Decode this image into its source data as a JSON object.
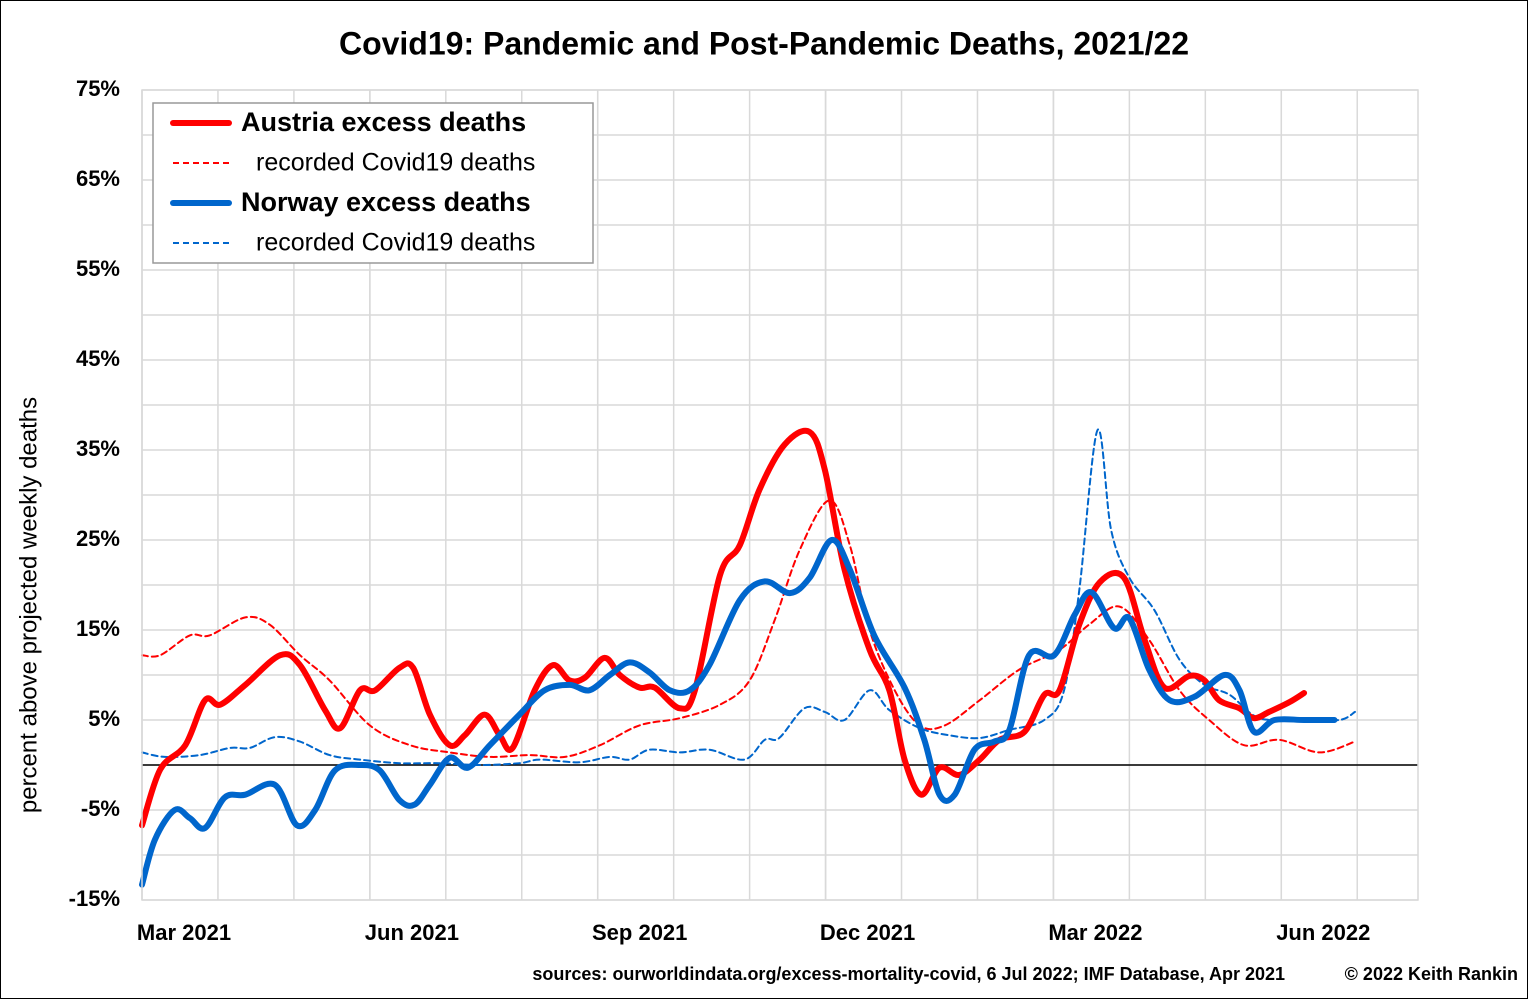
{
  "chart_data": {
    "type": "line",
    "title": "Covid19: Pandemic and Post-Pandemic Deaths, 2021/22",
    "ylabel": "percent above projected weekly deaths",
    "source": "sources: ourworldindata.org/excess-mortality-covid, 6 Jul 2022; IMF Database, Apr 2021",
    "credit": "© 2022 Keith Rankin",
    "xlim": [
      0,
      16.8
    ],
    "xticks": [
      {
        "value": 0,
        "label": "Mar 2021"
      },
      {
        "value": 3,
        "label": "Jun 2021"
      },
      {
        "value": 6,
        "label": "Sep 2021"
      },
      {
        "value": 9,
        "label": "Dec 2021"
      },
      {
        "value": 12,
        "label": "Mar 2022"
      },
      {
        "value": 15,
        "label": "Jun 2022"
      }
    ],
    "ylim": [
      -15,
      75
    ],
    "yticks": [
      {
        "value": 75,
        "label": "75%"
      },
      {
        "value": 65,
        "label": "65%"
      },
      {
        "value": 55,
        "label": "55%"
      },
      {
        "value": 45,
        "label": "45%"
      },
      {
        "value": 35,
        "label": "35%"
      },
      {
        "value": 25,
        "label": "25%"
      },
      {
        "value": 15,
        "label": "15%"
      },
      {
        "value": 5,
        "label": "5%"
      },
      {
        "value": -5,
        "label": "-5%"
      },
      {
        "value": -15,
        "label": "-15%"
      }
    ],
    "grid": true,
    "legend": "top-left",
    "series": [
      {
        "name": "Austria excess deaths",
        "color": "#ff0000",
        "line_style": "solid",
        "x": [
          0,
          0.24,
          0.57,
          0.83,
          1.03,
          1.36,
          1.82,
          2.08,
          2.41,
          2.61,
          2.87,
          3.07,
          3.39,
          3.57,
          3.79,
          4.05,
          4.25,
          4.51,
          4.71,
          4.88,
          5.17,
          5.41,
          5.63,
          5.83,
          6.09,
          6.29,
          6.55,
          6.75,
          7.08,
          7.28,
          7.61,
          7.87,
          8.13,
          8.46,
          8.79,
          8.99,
          9.25,
          9.58,
          9.84,
          10.04,
          10.26,
          10.5,
          10.76,
          11.03,
          11.29,
          11.62,
          11.88,
          12.08,
          12.34,
          12.61,
          12.93,
          13.2,
          13.46,
          13.79,
          13.99,
          14.18,
          14.45,
          14.64,
          14.84,
          15.11,
          15.3
        ],
        "values": [
          -6.7,
          -0.5,
          2.2,
          7.2,
          6.7,
          8.9,
          12.2,
          11.1,
          6.1,
          4.1,
          8.3,
          8.3,
          10.8,
          10.8,
          5.6,
          2.2,
          3.3,
          5.6,
          3.3,
          1.9,
          8.3,
          11.1,
          9.4,
          9.7,
          11.9,
          10,
          8.6,
          8.6,
          6.3,
          8.3,
          21.1,
          24.4,
          30.6,
          35.6,
          37,
          32.8,
          21.7,
          12.8,
          8.3,
          0.6,
          -3.3,
          -0.3,
          -1.1,
          0.6,
          2.8,
          3.7,
          7.8,
          8.3,
          15.6,
          20.3,
          20.8,
          13.9,
          8.6,
          9.9,
          9.4,
          7.2,
          6.3,
          5.2,
          5.9,
          7,
          8
        ]
      },
      {
        "name": "recorded Covid19 deaths",
        "color": "#ff0000",
        "line_style": "dashed",
        "x": [
          0,
          0.24,
          0.63,
          0.89,
          1.36,
          1.68,
          2.08,
          2.47,
          3,
          3.53,
          4.05,
          4.58,
          5.11,
          5.57,
          6.03,
          6.55,
          7.08,
          7.61,
          8,
          8.33,
          8.66,
          9.05,
          9.32,
          9.58,
          9.91,
          10.24,
          10.57,
          11.03,
          11.55,
          12.08,
          12.47,
          12.87,
          13.26,
          13.66,
          14.05,
          14.51,
          14.97,
          15.5,
          15.97
        ],
        "values": [
          12.2,
          12.2,
          14.4,
          14.4,
          16.4,
          15.6,
          12.2,
          9.4,
          4.4,
          2.2,
          1.4,
          0.9,
          1.1,
          0.9,
          2.2,
          4.4,
          5.2,
          6.7,
          9.4,
          16.1,
          23.9,
          29.4,
          24.4,
          15,
          8.3,
          4.4,
          4.4,
          7.2,
          10.6,
          12.8,
          15.6,
          17.6,
          13.9,
          8.3,
          5,
          2.2,
          2.8,
          1.4,
          2.6
        ]
      },
      {
        "name": "Norway excess deaths",
        "color": "#0066cc",
        "line_style": "solid",
        "x": [
          0,
          0.17,
          0.43,
          0.63,
          0.83,
          1.09,
          1.36,
          1.75,
          2.04,
          2.28,
          2.54,
          2.87,
          3.13,
          3.39,
          3.59,
          3.79,
          4.05,
          4.29,
          4.58,
          4.97,
          5.3,
          5.63,
          5.89,
          6.16,
          6.42,
          6.68,
          6.95,
          7.21,
          7.47,
          7.87,
          8.2,
          8.53,
          8.79,
          9.08,
          9.32,
          9.64,
          10.04,
          10.3,
          10.5,
          10.7,
          10.96,
          11.22,
          11.42,
          11.68,
          12.01,
          12.28,
          12.5,
          12.8,
          13,
          13.26,
          13.53,
          13.86,
          14.25,
          14.45,
          14.64,
          14.91,
          15.3,
          15.7
        ],
        "values": [
          -13.3,
          -8.3,
          -5,
          -5.9,
          -7,
          -3.6,
          -3.3,
          -2.2,
          -6.7,
          -5,
          -0.6,
          0,
          -0.6,
          -3.9,
          -4.4,
          -2.2,
          0.8,
          -0.3,
          2.2,
          5.6,
          8.3,
          8.9,
          8.3,
          10,
          11.4,
          10.3,
          8.3,
          8.3,
          11.1,
          18.3,
          20.4,
          19.1,
          20.8,
          25,
          21.7,
          14.4,
          8.6,
          2.8,
          -3.3,
          -3.3,
          1.7,
          2.6,
          3.9,
          12.2,
          12.2,
          16.7,
          19.2,
          15.2,
          16.3,
          10.6,
          7.2,
          7.6,
          10,
          8.3,
          3.7,
          5,
          5,
          5
        ]
      },
      {
        "name": "recorded Covid19 deaths",
        "color": "#0066cc",
        "line_style": "dashed",
        "x": [
          0,
          0.3,
          0.76,
          1.16,
          1.42,
          1.75,
          2.08,
          2.47,
          2.87,
          3.39,
          3.92,
          4.45,
          4.97,
          5.24,
          5.76,
          6.16,
          6.42,
          6.68,
          7.08,
          7.47,
          7.93,
          8.2,
          8.39,
          8.72,
          8.99,
          9.25,
          9.58,
          9.84,
          10.24,
          10.63,
          11.03,
          11.42,
          11.88,
          12.14,
          12.34,
          12.58,
          12.76,
          13,
          13.33,
          13.66,
          13.99,
          14.32,
          14.71,
          15.24,
          15.76,
          15.97
        ],
        "values": [
          1.4,
          0.9,
          1.1,
          1.9,
          1.9,
          3.1,
          2.6,
          1.1,
          0.6,
          0.2,
          0.2,
          0,
          0.2,
          0.6,
          0.3,
          0.9,
          0.6,
          1.7,
          1.4,
          1.7,
          0.6,
          2.8,
          3,
          6.3,
          5.9,
          5,
          8.3,
          6.1,
          4.1,
          3.3,
          3,
          3.9,
          5,
          8.3,
          19.4,
          37.2,
          26.1,
          20.8,
          17.2,
          11.7,
          8.9,
          7.8,
          5.2,
          5.2,
          5,
          5.9
        ]
      }
    ]
  }
}
